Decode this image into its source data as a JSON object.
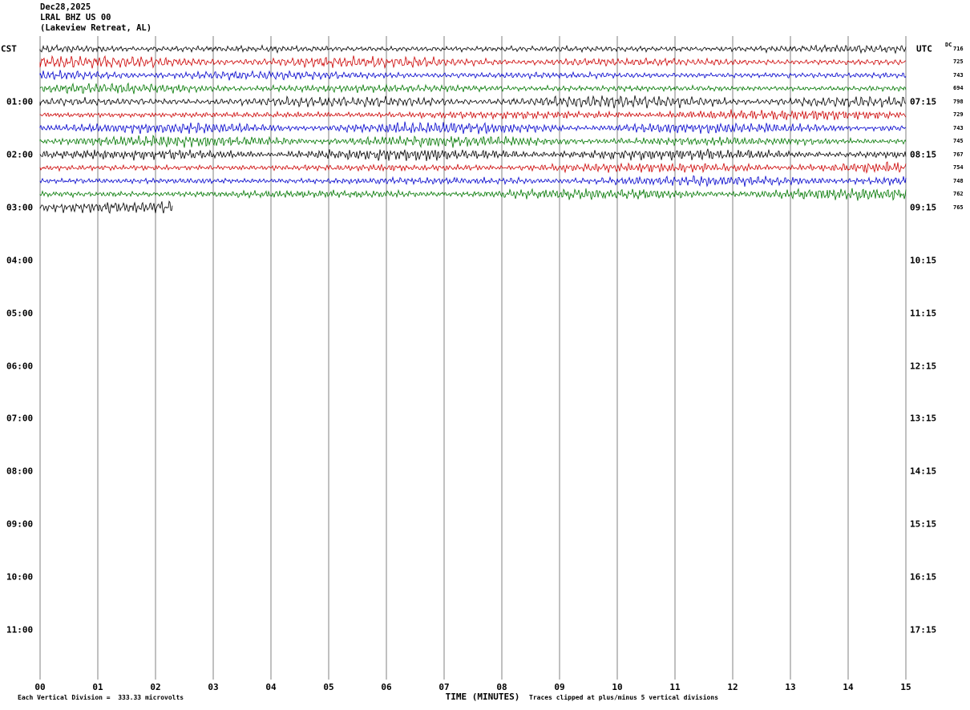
{
  "header": {
    "date": "Dec28,2025",
    "station": "LRAL BHZ US 00",
    "location": "(Lakeview Retreat, AL)"
  },
  "axes": {
    "left_label": "CST",
    "right_label": "UTC",
    "left_ticks": [
      "01:00",
      "02:00",
      "03:00",
      "04:00",
      "05:00",
      "06:00",
      "07:00",
      "08:00",
      "09:00",
      "10:00",
      "11:00"
    ],
    "right_ticks": [
      "07:15",
      "08:15",
      "09:15",
      "10:15",
      "11:15",
      "12:15",
      "13:15",
      "14:15",
      "15:15",
      "16:15",
      "17:15"
    ],
    "x_ticks": [
      "00",
      "01",
      "02",
      "03",
      "04",
      "05",
      "06",
      "07",
      "08",
      "09",
      "10",
      "11",
      "12",
      "13",
      "14",
      "15"
    ]
  },
  "dc_column": {
    "label": "DC",
    "values": [
      "716",
      "725",
      "743",
      "694",
      "798",
      "729",
      "743",
      "745",
      "767",
      "754",
      "748",
      "762",
      "765"
    ]
  },
  "footer": {
    "left": "Each Vertical Division =  333.33 microvolts",
    "center": "TIME (MINUTES)",
    "right": "Traces clipped at plus/minus 5 vertical divisions"
  },
  "chart_data": {
    "type": "line",
    "title": "LRAL BHZ US 00 (Lakeview Retreat, AL) helicorder seismogram, Dec28,2025",
    "xlabel": "TIME (MINUTES)",
    "x_range": [
      0,
      15
    ],
    "left_axis_label": "CST",
    "right_axis_label": "UTC",
    "left_axis_times_cst": [
      "01:00",
      "02:00",
      "03:00",
      "04:00",
      "05:00",
      "06:00",
      "07:00",
      "08:00",
      "09:00",
      "10:00",
      "11:00"
    ],
    "right_axis_times_utc": [
      "07:15",
      "08:15",
      "09:15",
      "10:15",
      "11:15",
      "12:15",
      "13:15",
      "14:15",
      "15:15",
      "16:15",
      "17:15"
    ],
    "microvolts_per_division": "333.33",
    "clip_note": "plus/minus 5 vertical divisions",
    "grid": "vertical minute gridlines only",
    "trace_color_cycle": [
      "#000000",
      "#cc0000",
      "#0000cc",
      "#007700"
    ],
    "traces": [
      {
        "row": 0,
        "cst_start": "00:00",
        "color": "black",
        "minutes": 15,
        "dc": "716"
      },
      {
        "row": 1,
        "cst_start": "00:15",
        "color": "red",
        "minutes": 15,
        "dc": "725"
      },
      {
        "row": 2,
        "cst_start": "00:30",
        "color": "blue",
        "minutes": 15,
        "dc": "743"
      },
      {
        "row": 3,
        "cst_start": "00:45",
        "color": "green",
        "minutes": 15,
        "dc": "694"
      },
      {
        "row": 4,
        "cst_start": "01:00",
        "color": "black",
        "minutes": 15,
        "dc": "798"
      },
      {
        "row": 5,
        "cst_start": "01:15",
        "color": "red",
        "minutes": 15,
        "dc": "729"
      },
      {
        "row": 6,
        "cst_start": "01:30",
        "color": "blue",
        "minutes": 15,
        "dc": "743"
      },
      {
        "row": 7,
        "cst_start": "01:45",
        "color": "green",
        "minutes": 15,
        "dc": "745"
      },
      {
        "row": 8,
        "cst_start": "02:00",
        "color": "black",
        "minutes": 15,
        "dc": "767"
      },
      {
        "row": 9,
        "cst_start": "02:15",
        "color": "red",
        "minutes": 15,
        "dc": "754"
      },
      {
        "row": 10,
        "cst_start": "02:30",
        "color": "blue",
        "minutes": 15,
        "dc": "748"
      },
      {
        "row": 11,
        "cst_start": "02:45",
        "color": "green",
        "minutes": 15,
        "dc": "762"
      },
      {
        "row": 12,
        "cst_start": "03:00",
        "color": "black",
        "minutes": 2.3,
        "dc": "765"
      }
    ]
  }
}
